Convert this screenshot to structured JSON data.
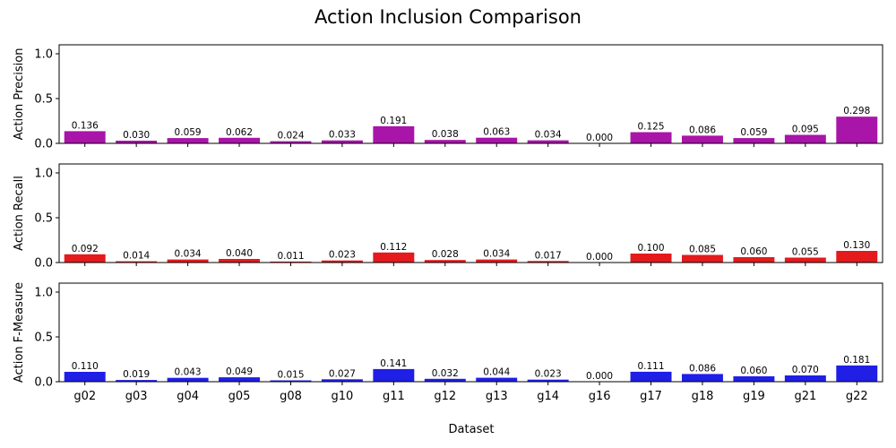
{
  "chart_data": {
    "type": "bar",
    "title": "Action Inclusion Comparison",
    "xlabel": "Dataset",
    "categories": [
      "g02",
      "g03",
      "g04",
      "g05",
      "g08",
      "g10",
      "g11",
      "g12",
      "g13",
      "g14",
      "g16",
      "g17",
      "g18",
      "g19",
      "g21",
      "g22"
    ],
    "ylim": [
      0,
      1.1
    ],
    "yticks": [
      0.0,
      0.5,
      1.0
    ],
    "ytick_labels": [
      "0.0",
      "0.5",
      "1.0"
    ],
    "grid": false,
    "panels": [
      {
        "ylabel": "Action Precision",
        "color": "#a914a9",
        "values": [
          0.136,
          0.03,
          0.059,
          0.062,
          0.024,
          0.033,
          0.191,
          0.038,
          0.063,
          0.034,
          0.0,
          0.125,
          0.086,
          0.059,
          0.095,
          0.298
        ],
        "value_labels": [
          "0.136",
          "0.030",
          "0.059",
          "0.062",
          "0.024",
          "0.033",
          "0.191",
          "0.038",
          "0.063",
          "0.034",
          "0.000",
          "0.125",
          "0.086",
          "0.059",
          "0.095",
          "0.298"
        ]
      },
      {
        "ylabel": "Action Recall",
        "color": "#e41a1c",
        "values": [
          0.092,
          0.014,
          0.034,
          0.04,
          0.011,
          0.023,
          0.112,
          0.028,
          0.034,
          0.017,
          0.0,
          0.1,
          0.085,
          0.06,
          0.055,
          0.13
        ],
        "value_labels": [
          "0.092",
          "0.014",
          "0.034",
          "0.040",
          "0.011",
          "0.023",
          "0.112",
          "0.028",
          "0.034",
          "0.017",
          "0.000",
          "0.100",
          "0.085",
          "0.060",
          "0.055",
          "0.130"
        ]
      },
      {
        "ylabel": "Action F-Measure",
        "color": "#1f1fe6",
        "values": [
          0.11,
          0.019,
          0.043,
          0.049,
          0.015,
          0.027,
          0.141,
          0.032,
          0.044,
          0.023,
          0.0,
          0.111,
          0.086,
          0.06,
          0.07,
          0.181
        ],
        "value_labels": [
          "0.110",
          "0.019",
          "0.043",
          "0.049",
          "0.015",
          "0.027",
          "0.141",
          "0.032",
          "0.044",
          "0.023",
          "0.000",
          "0.111",
          "0.086",
          "0.060",
          "0.070",
          "0.181"
        ]
      }
    ]
  }
}
